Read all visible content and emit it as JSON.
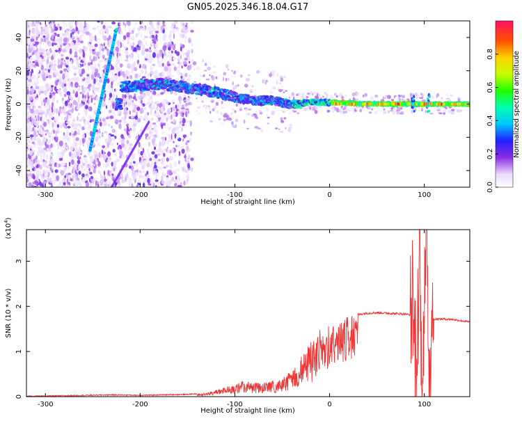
{
  "title": "GN05.2025.346.18.04.G17",
  "top": {
    "xlabel": "Height of straight line (km)",
    "ylabel": "Frequency (Hz)",
    "xlim": [
      -320,
      148
    ],
    "ylim": [
      -50,
      50
    ],
    "xticks": [
      -300,
      -200,
      -100,
      0,
      100
    ],
    "yticks": [
      -40,
      -20,
      0,
      20,
      40
    ],
    "colorbar": {
      "label": "Normalized spectral amplitude",
      "ticks": [
        "0.0",
        "0.2",
        "0.4",
        "0.6",
        "0.8"
      ]
    }
  },
  "bottom": {
    "xlabel": "Height of straight line (km)",
    "ylabel": "SNR (10 * v/v)",
    "multiplier": "(x10",
    "multiplier_exp": "4",
    "multiplier_close": ")",
    "xlim": [
      -320,
      148
    ],
    "ylim": [
      0,
      3.7
    ],
    "xticks": [
      -300,
      -200,
      -100,
      0,
      100
    ],
    "yticks": [
      0,
      1,
      2,
      3
    ]
  },
  "chart_data": [
    {
      "type": "heatmap",
      "title": "GN05.2025.346.18.04.G17",
      "xlabel": "Height of straight line (km)",
      "ylabel": "Frequency (Hz)",
      "xlim": [
        -320,
        148
      ],
      "ylim": [
        -50,
        50
      ],
      "colorbar_label": "Normalized spectral amplitude",
      "colorbar_range": [
        0,
        1
      ],
      "features": [
        {
          "name": "main ridge",
          "points": [
            [
              -220,
              10
            ],
            [
              -180,
              12
            ],
            [
              -150,
              10
            ],
            [
              -120,
              7
            ],
            [
              -100,
              4
            ],
            [
              -80,
              2
            ],
            [
              -60,
              2
            ],
            [
              -40,
              0
            ],
            [
              -20,
              1
            ],
            [
              0,
              1
            ],
            [
              50,
              0
            ],
            [
              148,
              0
            ]
          ]
        },
        {
          "name": "steep line",
          "points": [
            [
              -253,
              -28
            ],
            [
              -225,
              45
            ]
          ]
        },
        {
          "name": "spikes",
          "x": [
            88,
            104
          ]
        }
      ]
    },
    {
      "type": "line",
      "xlabel": "Height of straight line (km)",
      "ylabel": "SNR (10 * v/v)",
      "xlim": [
        -320,
        148
      ],
      "ylim": [
        0,
        3.7
      ],
      "y_multiplier": 10000,
      "series": [
        {
          "x": [
            -320,
            -280,
            -230,
            -200,
            -150,
            -130,
            -110,
            -90,
            -70,
            -50,
            -40,
            -30,
            -20,
            -10,
            0,
            10,
            20,
            30,
            40,
            50,
            60,
            70,
            80,
            88,
            92,
            95,
            97,
            100,
            103,
            105,
            107,
            110,
            120,
            130,
            140,
            148
          ],
          "values": [
            0.01,
            0.02,
            0.04,
            0.03,
            0.05,
            0.08,
            0.22,
            0.35,
            0.3,
            0.4,
            0.6,
            0.9,
            1.25,
            1.5,
            1.6,
            1.7,
            1.8,
            1.82,
            1.85,
            1.86,
            1.85,
            1.84,
            1.83,
            1.8,
            0.3,
            3.5,
            0.5,
            1.9,
            3.5,
            0.4,
            1.7,
            1.72,
            1.72,
            1.71,
            1.68,
            1.65
          ],
          "color": "#ee3333"
        }
      ]
    }
  ]
}
